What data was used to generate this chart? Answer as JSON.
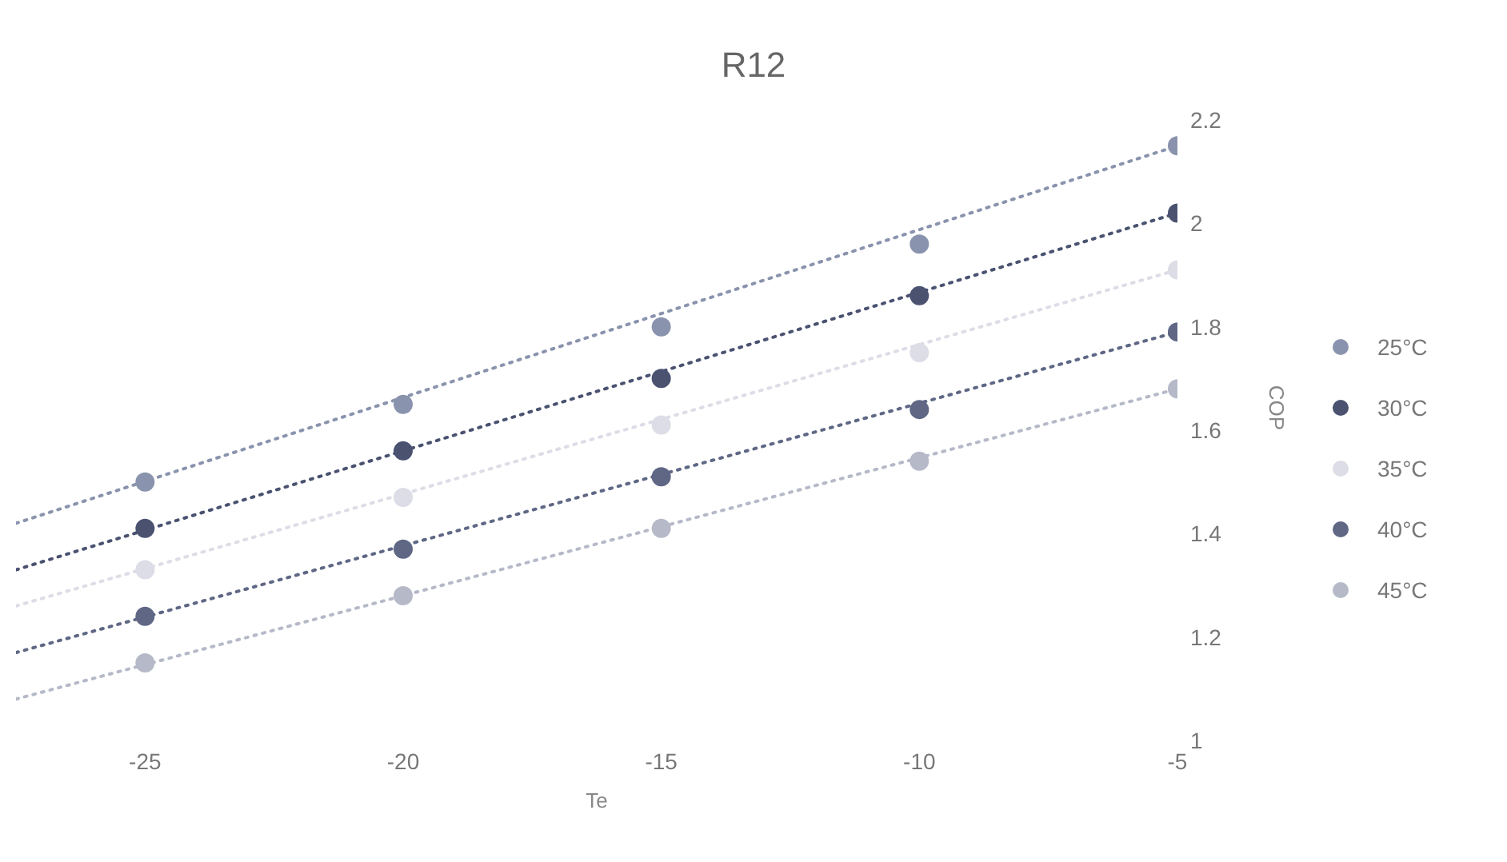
{
  "chart_data": {
    "type": "scatter",
    "title": "R12",
    "xlabel": "Te",
    "ylabel": "COP",
    "xlim": [
      -27.5,
      -5
    ],
    "xticks": [
      -25,
      -20,
      -15,
      -10,
      -5
    ],
    "ylim": [
      1,
      2.2
    ],
    "yticks": [
      1,
      1.2,
      1.4,
      1.6,
      1.8,
      2,
      2.2
    ],
    "grid": false,
    "legend": "right",
    "marker": "circle",
    "line_style": "dotted",
    "series": [
      {
        "name": "25°C",
        "color": "#8a93ad",
        "x": [
          -25,
          -20,
          -15,
          -10,
          -5
        ],
        "values": [
          1.5,
          1.65,
          1.8,
          1.96,
          2.15
        ]
      },
      {
        "name": "30°C",
        "color": "#4a5270",
        "x": [
          -25,
          -20,
          -15,
          -10,
          -5
        ],
        "values": [
          1.41,
          1.56,
          1.7,
          1.86,
          2.02
        ]
      },
      {
        "name": "35°C",
        "color": "#dcdde6",
        "x": [
          -25,
          -20,
          -15,
          -10,
          -5
        ],
        "values": [
          1.33,
          1.47,
          1.61,
          1.75,
          1.91
        ]
      },
      {
        "name": "40°C",
        "color": "#5f6785",
        "x": [
          -25,
          -20,
          -15,
          -10,
          -5
        ],
        "values": [
          1.24,
          1.37,
          1.51,
          1.64,
          1.79
        ]
      },
      {
        "name": "45°C",
        "color": "#b5b9c8",
        "x": [
          -25,
          -20,
          -15,
          -10,
          -5
        ],
        "values": [
          1.15,
          1.28,
          1.41,
          1.54,
          1.68
        ]
      },
      {
        "type": "line",
        "marker": "none",
        "color": "#8a93ad",
        "x": [
          -27.5,
          -5
        ],
        "values": [
          1.42,
          2.15
        ]
      },
      {
        "type": "line",
        "marker": "none",
        "color": "#4a5270",
        "x": [
          -27.5,
          -5
        ],
        "values": [
          1.33,
          2.02
        ]
      },
      {
        "type": "line",
        "marker": "none",
        "color": "#dcdde6",
        "x": [
          -27.5,
          -5
        ],
        "values": [
          1.26,
          1.91
        ]
      },
      {
        "type": "line",
        "marker": "none",
        "color": "#5f6785",
        "x": [
          -27.5,
          -5
        ],
        "values": [
          1.17,
          1.79
        ]
      },
      {
        "type": "line",
        "marker": "none",
        "color": "#b5b9c8",
        "x": [
          -27.5,
          -5
        ],
        "values": [
          1.08,
          1.68
        ]
      }
    ]
  }
}
